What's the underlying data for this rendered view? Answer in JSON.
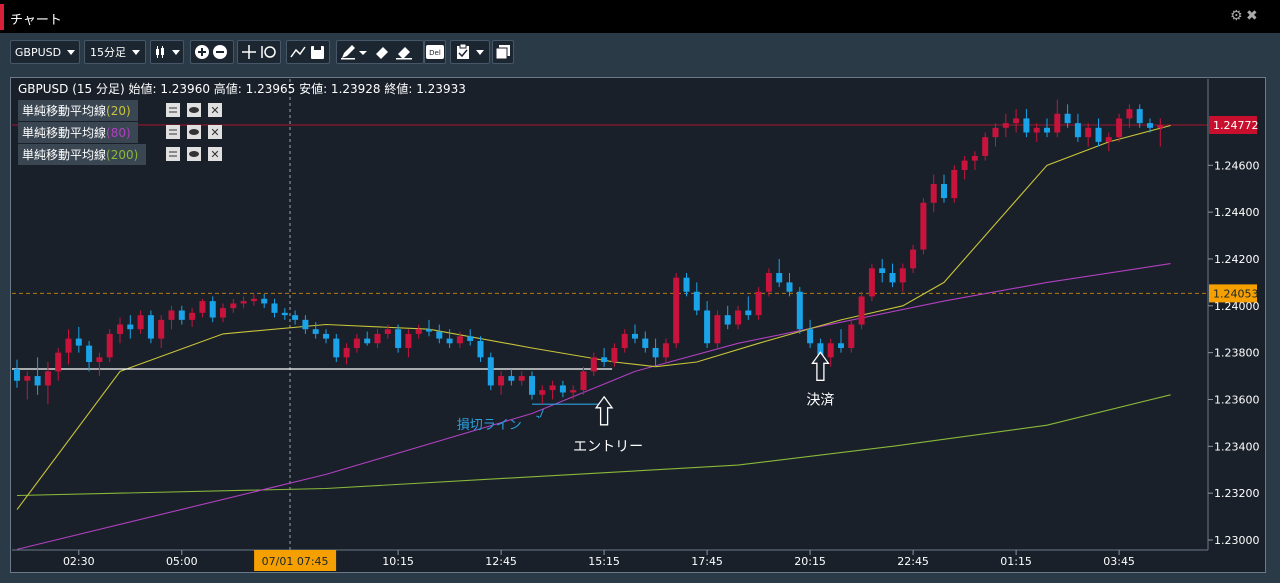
{
  "window": {
    "title": "チャート"
  },
  "toolbar": {
    "symbol": "GBPUSD",
    "timeframe": "15分足"
  },
  "info_line": "GBPUSD (15 分足) 始値: 1.23960 高値: 1.23965 安値: 1.23928 終値: 1.23933",
  "indicators": [
    {
      "label": "単純移動平均線",
      "period": "(20)",
      "color": "#c9c43a"
    },
    {
      "label": "単純移動平均線",
      "period": "(80)",
      "color": "#b040c0"
    },
    {
      "label": "単純移動平均線",
      "period": "(200)",
      "color": "#8ab83a"
    }
  ],
  "chart_data": {
    "type": "candlestick",
    "symbol": "GBPUSD",
    "interval": "15 分足",
    "ylim": [
      1.2294,
      1.249
    ],
    "y_ticks": [
      "1.23000",
      "1.23200",
      "1.23400",
      "1.23600",
      "1.23800",
      "1.24000",
      "1.24200",
      "1.24400",
      "1.24600"
    ],
    "x_ticks": [
      {
        "label": "02:30",
        "idx": 6
      },
      {
        "label": "05:00",
        "idx": 16
      },
      {
        "label": "07/01 07:45",
        "idx": 27,
        "highlight": true
      },
      {
        "label": "10:15",
        "idx": 37
      },
      {
        "label": "12:45",
        "idx": 47
      },
      {
        "label": "15:15",
        "idx": 57
      },
      {
        "label": "17:45",
        "idx": 67
      },
      {
        "label": "20:15",
        "idx": 77
      },
      {
        "label": "22:45",
        "idx": 87
      },
      {
        "label": "01:15",
        "idx": 97
      },
      {
        "label": "03:45",
        "idx": 107
      }
    ],
    "price_labels": [
      {
        "value": 1.24772,
        "text": "1.24772",
        "color": "#c8102e"
      },
      {
        "value": 1.24053,
        "text": "1.24053",
        "color": "#f5a000"
      }
    ],
    "ohlc": [
      [
        1.2373,
        1.2377,
        1.2365,
        1.2368
      ],
      [
        1.2368,
        1.2372,
        1.236,
        1.237
      ],
      [
        1.237,
        1.2378,
        1.2362,
        1.2366
      ],
      [
        1.2366,
        1.2376,
        1.2358,
        1.2372
      ],
      [
        1.2372,
        1.2382,
        1.2368,
        1.238
      ],
      [
        1.238,
        1.239,
        1.2375,
        1.2386
      ],
      [
        1.2386,
        1.2391,
        1.238,
        1.2383
      ],
      [
        1.2383,
        1.2385,
        1.2372,
        1.2376
      ],
      [
        1.2376,
        1.238,
        1.237,
        1.2378
      ],
      [
        1.2378,
        1.239,
        1.2376,
        1.2388
      ],
      [
        1.2388,
        1.2395,
        1.2384,
        1.2392
      ],
      [
        1.2392,
        1.2396,
        1.2386,
        1.239
      ],
      [
        1.239,
        1.2398,
        1.2388,
        1.2396
      ],
      [
        1.2396,
        1.2398,
        1.2384,
        1.2386
      ],
      [
        1.2386,
        1.2396,
        1.2382,
        1.2394
      ],
      [
        1.2394,
        1.24,
        1.239,
        1.2398
      ],
      [
        1.2398,
        1.24,
        1.2392,
        1.2394
      ],
      [
        1.2394,
        1.2399,
        1.2391,
        1.2397
      ],
      [
        1.2397,
        1.2403,
        1.2395,
        1.2402
      ],
      [
        1.2402,
        1.2404,
        1.2393,
        1.2395
      ],
      [
        1.2395,
        1.2401,
        1.2393,
        1.2399
      ],
      [
        1.2399,
        1.2403,
        1.2397,
        1.2401
      ],
      [
        1.2401,
        1.2404,
        1.2399,
        1.2402
      ],
      [
        1.2402,
        1.2405,
        1.24,
        1.2403
      ],
      [
        1.2403,
        1.2405,
        1.2399,
        1.2401
      ],
      [
        1.2401,
        1.2403,
        1.2395,
        1.2397
      ],
      [
        1.2397,
        1.2399,
        1.2394,
        1.2396
      ],
      [
        1.2396,
        1.2398,
        1.2392,
        1.2394
      ],
      [
        1.2394,
        1.2396,
        1.2388,
        1.239
      ],
      [
        1.239,
        1.2393,
        1.2386,
        1.2388
      ],
      [
        1.2388,
        1.239,
        1.2384,
        1.2386
      ],
      [
        1.2386,
        1.2388,
        1.2376,
        1.2378
      ],
      [
        1.2378,
        1.2384,
        1.2375,
        1.2382
      ],
      [
        1.2382,
        1.2388,
        1.238,
        1.2386
      ],
      [
        1.2386,
        1.2389,
        1.2383,
        1.2384
      ],
      [
        1.2384,
        1.239,
        1.2382,
        1.2388
      ],
      [
        1.2388,
        1.2392,
        1.2386,
        1.239
      ],
      [
        1.239,
        1.2392,
        1.238,
        1.2382
      ],
      [
        1.2382,
        1.239,
        1.2378,
        1.2388
      ],
      [
        1.2388,
        1.2392,
        1.2386,
        1.239
      ],
      [
        1.239,
        1.2394,
        1.2387,
        1.2389
      ],
      [
        1.2389,
        1.2392,
        1.2384,
        1.2386
      ],
      [
        1.2386,
        1.239,
        1.2382,
        1.2384
      ],
      [
        1.2384,
        1.2389,
        1.2382,
        1.2387
      ],
      [
        1.2387,
        1.239,
        1.2383,
        1.2385
      ],
      [
        1.2385,
        1.2387,
        1.2376,
        1.2378
      ],
      [
        1.2378,
        1.238,
        1.2364,
        1.2366
      ],
      [
        1.2366,
        1.2372,
        1.2362,
        1.237
      ],
      [
        1.237,
        1.2373,
        1.2366,
        1.2368
      ],
      [
        1.2368,
        1.2372,
        1.2366,
        1.237
      ],
      [
        1.237,
        1.2372,
        1.236,
        1.2362
      ],
      [
        1.2362,
        1.2366,
        1.2358,
        1.2364
      ],
      [
        1.2364,
        1.2368,
        1.236,
        1.2366
      ],
      [
        1.2366,
        1.2368,
        1.2361,
        1.2363
      ],
      [
        1.2363,
        1.2366,
        1.236,
        1.2364
      ],
      [
        1.2364,
        1.2374,
        1.2362,
        1.2372
      ],
      [
        1.2372,
        1.238,
        1.237,
        1.2378
      ],
      [
        1.2378,
        1.2382,
        1.2374,
        1.2376
      ],
      [
        1.2376,
        1.2384,
        1.2374,
        1.2382
      ],
      [
        1.2382,
        1.239,
        1.238,
        1.2388
      ],
      [
        1.2388,
        1.2392,
        1.2384,
        1.2386
      ],
      [
        1.2386,
        1.2389,
        1.238,
        1.2382
      ],
      [
        1.2382,
        1.2386,
        1.2374,
        1.2378
      ],
      [
        1.2378,
        1.2386,
        1.2376,
        1.2384
      ],
      [
        1.2384,
        1.2414,
        1.2382,
        1.2412
      ],
      [
        1.2412,
        1.2414,
        1.2404,
        1.2406
      ],
      [
        1.2406,
        1.241,
        1.2396,
        1.2398
      ],
      [
        1.2398,
        1.2402,
        1.2382,
        1.2384
      ],
      [
        1.2384,
        1.2398,
        1.2382,
        1.2396
      ],
      [
        1.2396,
        1.24,
        1.239,
        1.2392
      ],
      [
        1.2392,
        1.24,
        1.239,
        1.2398
      ],
      [
        1.2398,
        1.2404,
        1.2394,
        1.2396
      ],
      [
        1.2396,
        1.2408,
        1.2394,
        1.2406
      ],
      [
        1.2406,
        1.2416,
        1.2404,
        1.2414
      ],
      [
        1.2414,
        1.242,
        1.2408,
        1.241
      ],
      [
        1.241,
        1.2414,
        1.2404,
        1.2406
      ],
      [
        1.2406,
        1.2408,
        1.2388,
        1.239
      ],
      [
        1.239,
        1.2394,
        1.2382,
        1.2384
      ],
      [
        1.2384,
        1.2386,
        1.2372,
        1.2378
      ],
      [
        1.2378,
        1.2386,
        1.2374,
        1.2384
      ],
      [
        1.2384,
        1.239,
        1.238,
        1.2382
      ],
      [
        1.2382,
        1.2394,
        1.238,
        1.2392
      ],
      [
        1.2392,
        1.2406,
        1.239,
        1.2404
      ],
      [
        1.2404,
        1.2418,
        1.2402,
        1.2416
      ],
      [
        1.2416,
        1.242,
        1.241,
        1.2414
      ],
      [
        1.2414,
        1.2418,
        1.2408,
        1.241
      ],
      [
        1.241,
        1.2418,
        1.2406,
        1.2416
      ],
      [
        1.2416,
        1.2426,
        1.2414,
        1.2424
      ],
      [
        1.2424,
        1.2446,
        1.2422,
        1.2444
      ],
      [
        1.2444,
        1.2456,
        1.244,
        1.2452
      ],
      [
        1.2452,
        1.2456,
        1.2444,
        1.2446
      ],
      [
        1.2446,
        1.246,
        1.2444,
        1.2458
      ],
      [
        1.2458,
        1.2464,
        1.2454,
        1.2462
      ],
      [
        1.2462,
        1.2466,
        1.2458,
        1.2464
      ],
      [
        1.2464,
        1.2474,
        1.2462,
        1.2472
      ],
      [
        1.2472,
        1.2478,
        1.2468,
        1.2476
      ],
      [
        1.2476,
        1.2482,
        1.2472,
        1.2478
      ],
      [
        1.2478,
        1.2484,
        1.2474,
        1.248
      ],
      [
        1.248,
        1.2484,
        1.2472,
        1.2474
      ],
      [
        1.2474,
        1.2478,
        1.247,
        1.2476
      ],
      [
        1.2476,
        1.248,
        1.2472,
        1.2474
      ],
      [
        1.2474,
        1.2488,
        1.2472,
        1.2482
      ],
      [
        1.2482,
        1.2486,
        1.2476,
        1.2478
      ],
      [
        1.2478,
        1.2482,
        1.247,
        1.2472
      ],
      [
        1.2472,
        1.2478,
        1.2468,
        1.2476
      ],
      [
        1.2476,
        1.248,
        1.2468,
        1.247
      ],
      [
        1.247,
        1.2474,
        1.2466,
        1.2472
      ],
      [
        1.2472,
        1.2482,
        1.247,
        1.248
      ],
      [
        1.248,
        1.2486,
        1.2476,
        1.2484
      ],
      [
        1.2484,
        1.2486,
        1.2476,
        1.2478
      ],
      [
        1.2478,
        1.248,
        1.2474,
        1.2476
      ],
      [
        1.2476,
        1.248,
        1.2468,
        1.2477
      ]
    ],
    "sma20": [
      [
        0,
        1.2313
      ],
      [
        10,
        1.2372
      ],
      [
        20,
        1.2388
      ],
      [
        30,
        1.2392
      ],
      [
        40,
        1.239
      ],
      [
        50,
        1.2382
      ],
      [
        58,
        1.2376
      ],
      [
        62,
        1.2374
      ],
      [
        66,
        1.2376
      ],
      [
        72,
        1.2384
      ],
      [
        80,
        1.2394
      ],
      [
        86,
        1.24
      ],
      [
        90,
        1.241
      ],
      [
        96,
        1.244
      ],
      [
        100,
        1.246
      ],
      [
        106,
        1.247
      ],
      [
        112,
        1.2477
      ]
    ],
    "sma80": [
      [
        0,
        1.2296
      ],
      [
        30,
        1.2328
      ],
      [
        50,
        1.2354
      ],
      [
        60,
        1.2372
      ],
      [
        70,
        1.2384
      ],
      [
        80,
        1.2393
      ],
      [
        90,
        1.2402
      ],
      [
        100,
        1.241
      ],
      [
        112,
        1.2418
      ]
    ],
    "sma200": [
      [
        0,
        1.2319
      ],
      [
        30,
        1.2322
      ],
      [
        50,
        1.2327
      ],
      [
        70,
        1.2332
      ],
      [
        85,
        1.234
      ],
      [
        100,
        1.2349
      ],
      [
        112,
        1.2362
      ]
    ],
    "annotations": [
      {
        "text": "決済",
        "idx": 78,
        "price": 1.2381,
        "direction": "up",
        "offset": 16
      },
      {
        "text": "エントリー",
        "idx": 57,
        "price": 1.2362,
        "direction": "up",
        "offset": 18
      },
      {
        "text": "損切ライン",
        "idx": 51,
        "price": 1.2355,
        "color": "#2aa0e0"
      }
    ],
    "stop_line": {
      "price": 1.2358,
      "idx_from": 50,
      "idx_to": 57
    },
    "level_line": {
      "price": 1.2373,
      "idx_from": 0,
      "idx_to": 57
    }
  }
}
